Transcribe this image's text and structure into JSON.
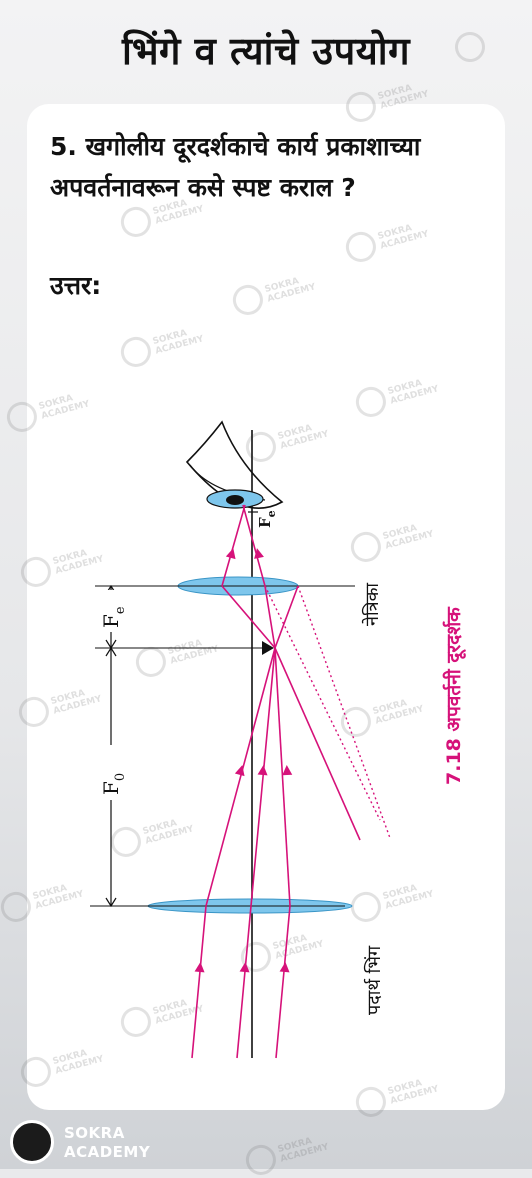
{
  "page": {
    "title": "भिंगे व त्यांचे उपयोग"
  },
  "card": {
    "question": "5. खगोलीय दूरदर्शकाचे कार्य प्रकाशाच्या अपवर्तनावरून कसे स्पष्ट कराल ?",
    "answer_label": "उत्तर:"
  },
  "diagram": {
    "label_Fe_top": "F",
    "label_Fe_top_sub": "e",
    "label_eyepiece": "नेत्रिका",
    "label_Fe_side": "F",
    "label_Fe_side_sub": "e",
    "label_F0": "F",
    "label_F0_sub": "0",
    "label_objective": "पदार्थ भिंग",
    "caption": "7.18 अपवर्तनी दूरदर्शक"
  },
  "watermark": {
    "line1": "SOKRA",
    "line2": "ACADEMY"
  },
  "footer": {
    "line1": "SOKRA",
    "line2": "ACADEMY"
  },
  "colors": {
    "ray": "#d6127a",
    "lens": "#7ec6ec",
    "caption": "#d6127a"
  }
}
